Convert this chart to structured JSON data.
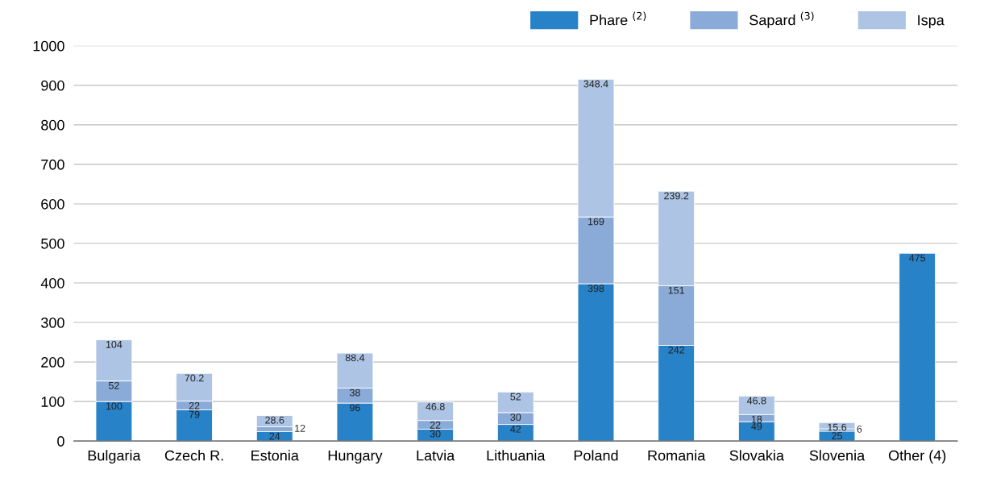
{
  "chart_data": {
    "type": "bar",
    "stacked": true,
    "categories": [
      "Bulgaria",
      "Czech R.",
      "Estonia",
      "Hungary",
      "Latvia",
      "Lithuania",
      "Poland",
      "Romania",
      "Slovakia",
      "Slovenia",
      "Other (4)"
    ],
    "series": [
      {
        "name": "Phare $^{(2)}$",
        "color": "#2882c8",
        "values": [
          100,
          79,
          24,
          96,
          30,
          42,
          398,
          242,
          49,
          25,
          475
        ]
      },
      {
        "name": "Sapard $^{(3)}$",
        "color": "#8aaad8",
        "values": [
          52,
          22,
          12,
          38,
          22,
          30,
          169,
          151,
          18,
          6,
          null
        ]
      },
      {
        "name": "Ispa",
        "color": "#aec4e4",
        "values": [
          104,
          70.2,
          28.6,
          88.4,
          46.8,
          52,
          348.4,
          239.2,
          46.8,
          15.6,
          null
        ]
      }
    ],
    "ylim": [
      0,
      1000
    ],
    "yticks": [
      0,
      100,
      200,
      300,
      400,
      500,
      600,
      700,
      800,
      900,
      1000
    ],
    "grid": "y",
    "legend": "top right",
    "data_labels": true
  }
}
